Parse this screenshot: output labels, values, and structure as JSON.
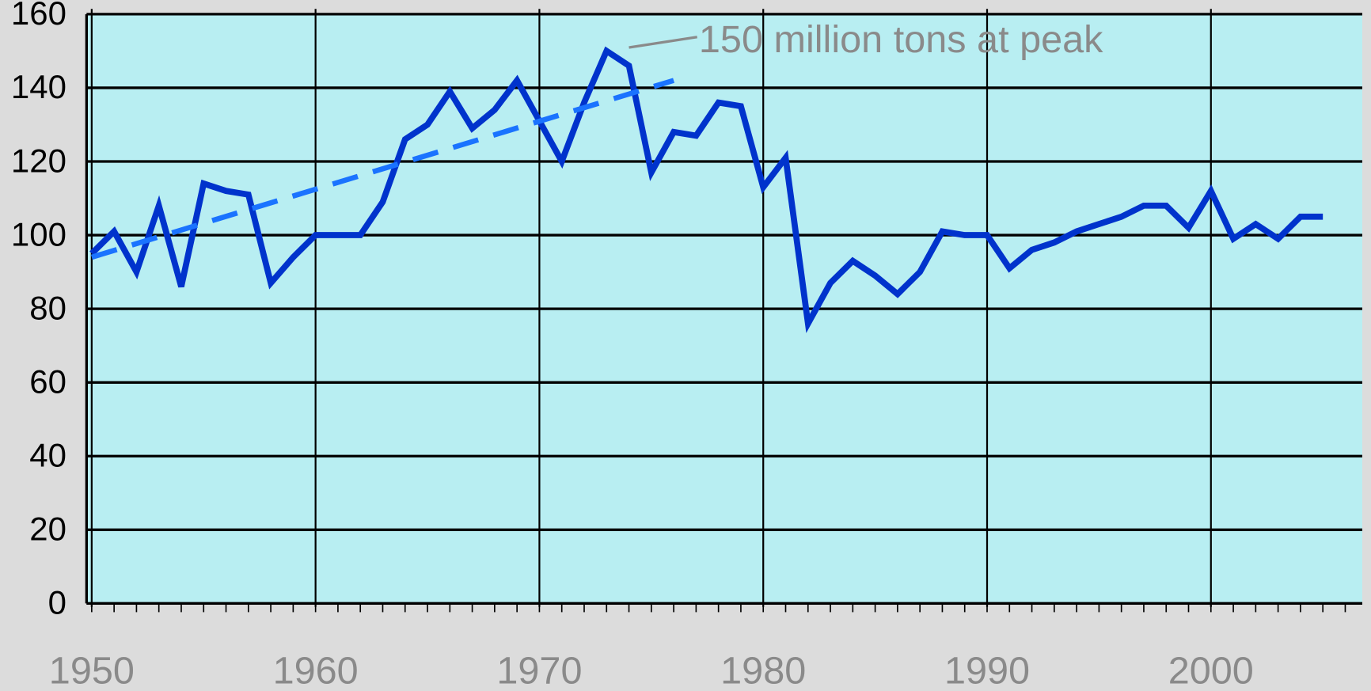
{
  "chart_data": {
    "type": "line",
    "x": [
      1950,
      1951,
      1952,
      1953,
      1954,
      1955,
      1956,
      1957,
      1958,
      1959,
      1960,
      1961,
      1962,
      1963,
      1964,
      1965,
      1966,
      1967,
      1968,
      1969,
      1970,
      1971,
      1972,
      1973,
      1974,
      1975,
      1976,
      1977,
      1978,
      1979,
      1980,
      1981,
      1982,
      1983,
      1984,
      1985,
      1986,
      1987,
      1988,
      1989,
      1990,
      1991,
      1992,
      1993,
      1994,
      1995,
      1996,
      1997,
      1998,
      1999,
      2000,
      2001,
      2002,
      2003,
      2004,
      2005
    ],
    "series": [
      {
        "color": "#0033cc",
        "values": [
          95,
          101,
          90,
          108,
          86,
          114,
          112,
          111,
          87,
          94,
          100,
          100,
          100,
          109,
          126,
          130,
          139,
          129,
          134,
          142,
          131,
          120,
          136,
          150,
          146,
          117,
          128,
          127,
          136,
          135,
          113,
          121,
          76,
          87,
          93,
          89,
          84,
          90,
          101,
          100,
          100,
          91,
          96,
          98,
          101,
          103,
          105,
          108,
          108,
          102,
          112,
          99,
          103,
          99,
          105,
          105
        ]
      },
      {
        "color": "#1a73ff",
        "dash": true,
        "x": [
          1950,
          1976
        ],
        "values": [
          94,
          142
        ]
      }
    ],
    "annotations": [
      {
        "text": "150 million tons at peak",
        "x": 1974,
        "y": 150
      }
    ],
    "xlim": [
      1949.77,
      2006.76
    ],
    "xticks": [
      1950,
      1960,
      1970,
      1980,
      1990,
      2000
    ],
    "ylim": [
      0,
      160
    ],
    "yticks": [
      0,
      20,
      40,
      60,
      80,
      100,
      120,
      140,
      160
    ],
    "grid": true,
    "background": "#b8eef2"
  }
}
